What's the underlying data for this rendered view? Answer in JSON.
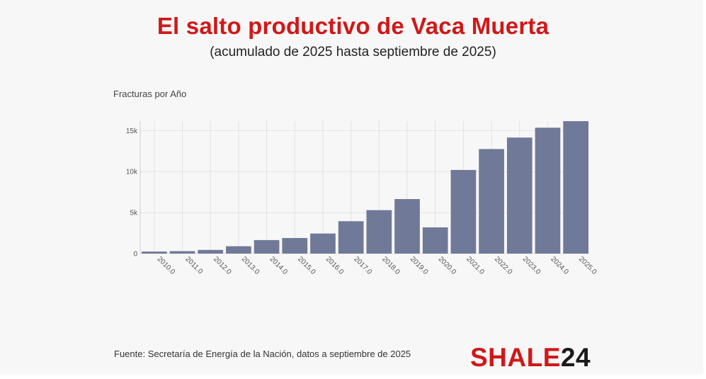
{
  "title": "El salto productivo de Vaca Muerta",
  "subtitle": "(acumulado de 2025 hasta septiembre de 2025)",
  "chart_label": "Fracturas por Año",
  "source": "Fuente: Secretaría de Energía de la Nación, datos a septiembre de 2025",
  "logo": {
    "part1": "SHALE",
    "part2": "24"
  },
  "colors": {
    "bar": "#717999",
    "title": "#d01818",
    "grid": "#e3e3e3",
    "background": "#f7f7f7"
  },
  "chart_data": {
    "type": "bar",
    "title": "Fracturas por Año",
    "xlabel": "",
    "ylabel": "",
    "categories": [
      "2010.0",
      "2011.0",
      "2012.0",
      "2013.0",
      "2014.0",
      "2015.0",
      "2016.0",
      "2017.0",
      "2018.0",
      "2019.0",
      "2020.0",
      "2021.0",
      "2022.0",
      "2023.0",
      "2024.0",
      "2025.0"
    ],
    "values": [
      250,
      300,
      450,
      900,
      1650,
      1900,
      2450,
      3950,
      5300,
      6650,
      3200,
      10200,
      12750,
      14150,
      15350,
      16150
    ],
    "ylim": [
      0,
      16150
    ],
    "yticks": [
      0,
      5000,
      10000,
      15000
    ],
    "ytick_labels": [
      "0",
      "5k",
      "10k",
      "15k"
    ],
    "grid": true,
    "legend": "none"
  }
}
